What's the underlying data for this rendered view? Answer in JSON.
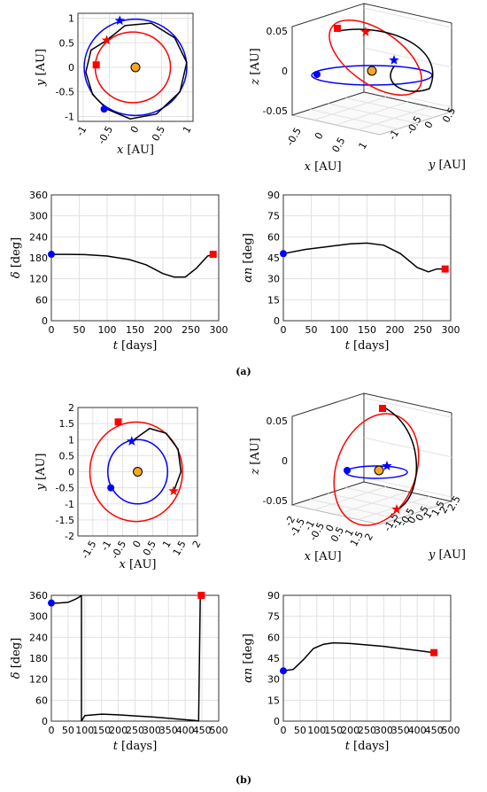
{
  "captions": {
    "a": "(a)",
    "b": "(b)"
  },
  "markers": {
    "start_color": "#0000ff",
    "end_color": "#ff0000",
    "sun_color": "#f5a623",
    "transfer_color": "#000000"
  },
  "chart_data": [
    {
      "id": "a_xy",
      "type": "line",
      "panel": "a",
      "xlabel_sym": "x",
      "ylabel_sym": "y",
      "unit": " [AU]",
      "xlim": [
        -1.1,
        1.1
      ],
      "ylim": [
        -1.1,
        1.1
      ],
      "xticks": [
        -1,
        -0.5,
        0,
        0.5,
        1
      ],
      "yticks": [
        -1,
        -0.5,
        0,
        0.5,
        1
      ],
      "orbits": [
        {
          "name": "departure",
          "color": "#0000ff",
          "cx": 0,
          "cy": 0,
          "r": 0.98
        },
        {
          "name": "arrival",
          "color": "#ff0000",
          "cx": -0.05,
          "cy": 0,
          "r": 0.72
        }
      ],
      "transfer": [
        [
          -0.55,
          -0.85
        ],
        [
          -0.82,
          -0.55
        ],
        [
          -0.95,
          -0.1
        ],
        [
          -0.85,
          0.35
        ],
        [
          -0.55,
          0.55
        ],
        [
          -0.2,
          0.85
        ],
        [
          0.3,
          0.9
        ],
        [
          0.75,
          0.6
        ],
        [
          0.98,
          0.1
        ],
        [
          0.85,
          -0.5
        ],
        [
          0.4,
          -0.95
        ],
        [
          -0.1,
          -1.05
        ],
        [
          -0.55,
          -0.85
        ]
      ],
      "start": [
        -0.6,
        -0.85
      ],
      "end": [
        -0.75,
        0.05
      ],
      "star_blue": [
        -0.3,
        0.95
      ],
      "star_red": [
        -0.55,
        0.55
      ]
    },
    {
      "id": "a_3d",
      "type": "line",
      "panel": "a",
      "xlabel_sym": "x",
      "ylabel_sym": "y",
      "zlabel_sym": "z",
      "unit": " [AU]",
      "xticks": [
        "-0.5",
        "0",
        "0.5",
        "1"
      ],
      "yticks": [
        "-1",
        "-0.5",
        "0",
        "0.5"
      ],
      "zlim": [
        -0.05,
        0.05
      ],
      "zticks": [
        "-0.05",
        "0",
        "0.05"
      ]
    },
    {
      "id": "a_delta",
      "type": "line",
      "panel": "a",
      "xlabel_sym": "t",
      "xunit": " [days]",
      "ylabel_sym": "δ",
      "yunit": " [deg]",
      "xlim": [
        0,
        300
      ],
      "ylim": [
        0,
        360
      ],
      "xticks": [
        0,
        50,
        100,
        150,
        200,
        250,
        300
      ],
      "yticks": [
        0,
        60,
        120,
        180,
        240,
        300,
        360
      ],
      "x": [
        0,
        30,
        60,
        100,
        140,
        170,
        200,
        220,
        240,
        260,
        280,
        290
      ],
      "y": [
        190,
        190,
        189,
        185,
        175,
        160,
        135,
        125,
        125,
        150,
        185,
        190
      ],
      "start": [
        0,
        190
      ],
      "end": [
        290,
        190
      ]
    },
    {
      "id": "a_alpha",
      "type": "line",
      "panel": "a",
      "xlabel_sym": "t",
      "xunit": " [days]",
      "ylabel_sym": "αn",
      "yunit": " [deg]",
      "xlim": [
        0,
        300
      ],
      "ylim": [
        0,
        90
      ],
      "xticks": [
        0,
        50,
        100,
        150,
        200,
        250,
        300
      ],
      "yticks": [
        0,
        15,
        30,
        45,
        60,
        75,
        90
      ],
      "x": [
        0,
        40,
        80,
        120,
        150,
        180,
        210,
        240,
        260,
        275,
        290
      ],
      "y": [
        48,
        51,
        53,
        55,
        55.5,
        54,
        48,
        38,
        35,
        37,
        37
      ],
      "start": [
        0,
        48
      ],
      "end": [
        290,
        37
      ]
    },
    {
      "id": "b_xy",
      "type": "line",
      "panel": "b",
      "xlabel_sym": "x",
      "ylabel_sym": "y",
      "unit": " [AU]",
      "xlim": [
        -2,
        2
      ],
      "ylim": [
        -2,
        2
      ],
      "xticks": [
        -1.5,
        -1,
        -0.5,
        0,
        0.5,
        1,
        1.5,
        2
      ],
      "yticks": [
        -2,
        -1.5,
        -1,
        -0.5,
        0,
        0.5,
        1,
        1.5,
        2
      ],
      "orbits": [
        {
          "name": "departure",
          "color": "#0000ff",
          "cx": 0,
          "cy": 0,
          "r": 1.0
        },
        {
          "name": "arrival",
          "color": "#ff0000",
          "cx": -0.05,
          "cy": 0,
          "r": 1.55
        }
      ],
      "transfer": [
        [
          -0.2,
          0.95
        ],
        [
          0.4,
          1.35
        ],
        [
          0.95,
          1.2
        ],
        [
          1.35,
          0.7
        ],
        [
          1.45,
          0.0
        ],
        [
          1.25,
          -0.5
        ],
        [
          1.2,
          -0.6
        ]
      ],
      "start": [
        -0.9,
        -0.5
      ],
      "end": [
        -0.65,
        1.55
      ],
      "star_blue": [
        -0.2,
        0.95
      ],
      "star_red": [
        1.2,
        -0.6
      ]
    },
    {
      "id": "b_3d",
      "type": "line",
      "panel": "b",
      "xlabel_sym": "x",
      "ylabel_sym": "y",
      "zlabel_sym": "z",
      "unit": " [AU]",
      "xticks": [
        "-2",
        "-1.5",
        "-1",
        "-0.5",
        "0",
        "0.5",
        "1",
        "1.5",
        "2"
      ],
      "yticks": [
        "-1.5",
        "-1",
        "-0.5",
        "0",
        "0.5",
        "1",
        "1.5",
        "2",
        "2.5"
      ],
      "zlim": [
        -0.05,
        0.05
      ],
      "zticks": [
        "-0.05",
        "0",
        "0.05"
      ]
    },
    {
      "id": "b_delta",
      "type": "line",
      "panel": "b",
      "xlabel_sym": "t",
      "xunit": " [days]",
      "ylabel_sym": "δ",
      "yunit": " [deg]",
      "xlim": [
        0,
        500
      ],
      "ylim": [
        0,
        360
      ],
      "xticks": [
        0,
        50,
        100,
        150,
        200,
        250,
        300,
        350,
        400,
        450,
        500
      ],
      "yticks": [
        0,
        60,
        120,
        180,
        240,
        300,
        360
      ],
      "segments": [
        {
          "x": [
            0,
            20,
            50,
            70,
            85,
            90
          ],
          "y": [
            338,
            338,
            340,
            348,
            356,
            360
          ]
        },
        {
          "x": [
            90,
            90
          ],
          "y": [
            360,
            0
          ]
        },
        {
          "x": [
            90,
            100,
            150,
            200,
            250,
            300,
            350,
            400,
            430,
            440
          ],
          "y": [
            0,
            16,
            20,
            18,
            15,
            12,
            8,
            4,
            2,
            0
          ]
        },
        {
          "x": [
            440,
            445
          ],
          "y": [
            0,
            360
          ]
        }
      ],
      "start": [
        0,
        338
      ],
      "end": [
        448,
        360
      ]
    },
    {
      "id": "b_alpha",
      "type": "line",
      "panel": "b",
      "xlabel_sym": "t",
      "xunit": " [days]",
      "ylabel_sym": "αn",
      "yunit": " [deg]",
      "xlim": [
        0,
        500
      ],
      "ylim": [
        0,
        90
      ],
      "xticks": [
        0,
        50,
        100,
        150,
        200,
        250,
        300,
        350,
        400,
        450,
        500
      ],
      "yticks": [
        0,
        15,
        30,
        45,
        60,
        75,
        90
      ],
      "x": [
        0,
        30,
        60,
        90,
        120,
        150,
        200,
        250,
        300,
        350,
        400,
        450
      ],
      "y": [
        36,
        37,
        44,
        52,
        55,
        56,
        55.5,
        54.5,
        53.5,
        52,
        50.5,
        49
      ],
      "start": [
        0,
        36
      ],
      "end": [
        450,
        49
      ]
    }
  ]
}
